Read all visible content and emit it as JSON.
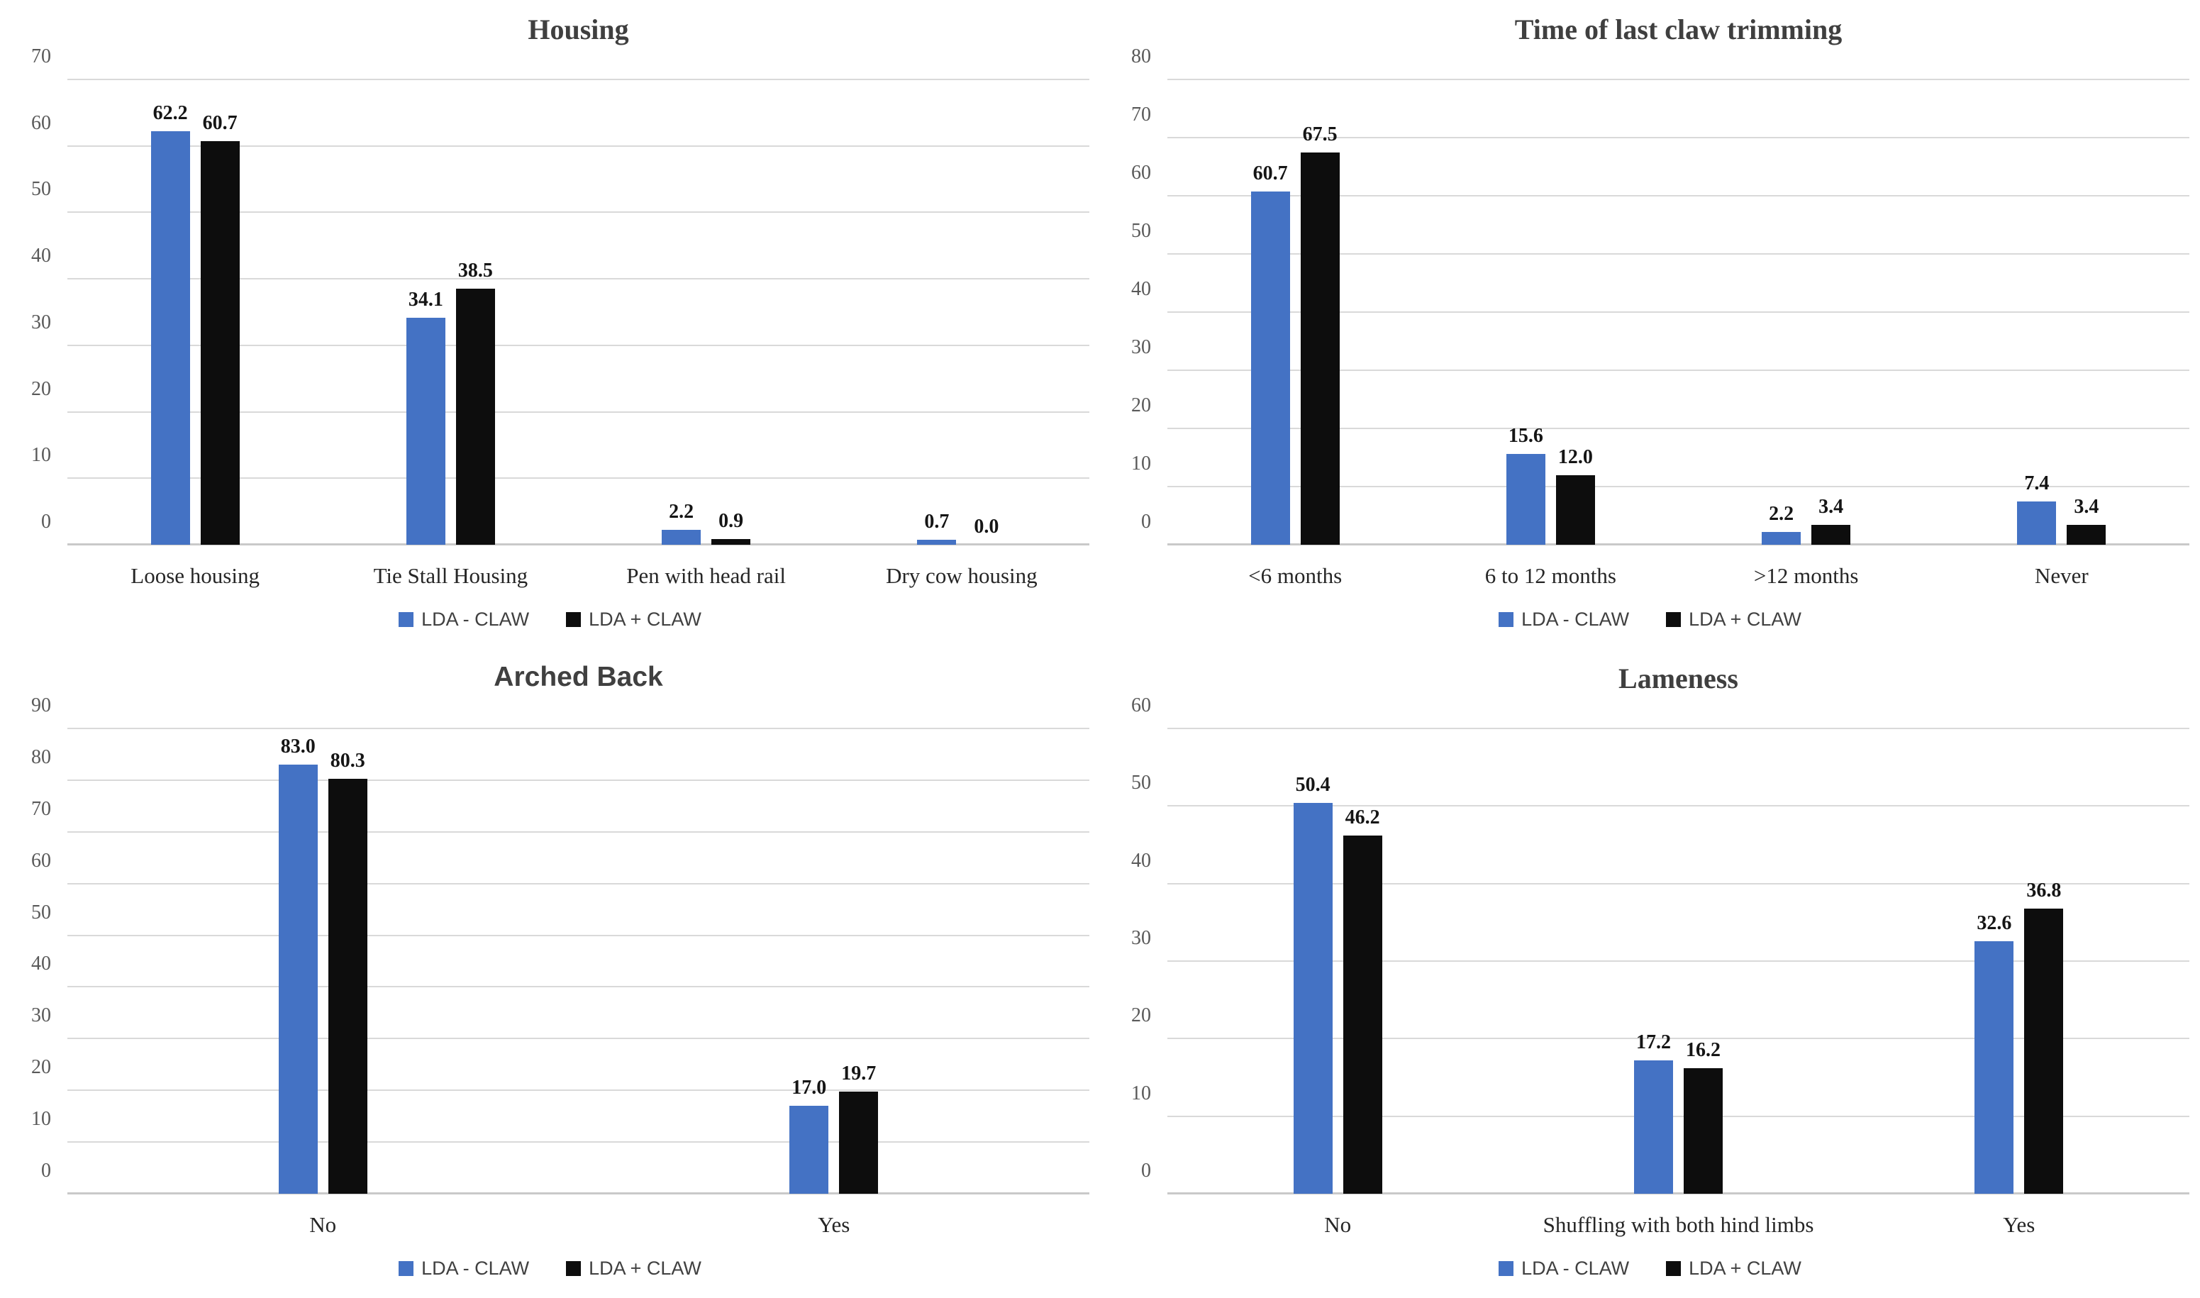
{
  "colors": {
    "series_blue": "#4472C4",
    "series_black": "#0D0D0D",
    "gridline": "#D9D9D9",
    "axis_line": "#C9C9C9",
    "tick_text": "#595959",
    "title_text": "#3F3F3F",
    "category_text": "#262626",
    "data_label_text": "#151515",
    "legend_text": "#404040"
  },
  "chart_data": [
    {
      "type": "bar",
      "title": "Housing",
      "title_style": "serif",
      "xlabel": "",
      "ylabel": "",
      "ylim": [
        0,
        70
      ],
      "ytick_step": 10,
      "grid": true,
      "legend_position": "bottom",
      "data_label_format": "one_decimal",
      "categories": [
        "Loose housing",
        "Tie Stall Housing",
        "Pen with head rail",
        "Dry cow housing"
      ],
      "series": [
        {
          "name": "LDA - CLAW",
          "color_key": "series_blue",
          "values": [
            62.2,
            34.1,
            2.2,
            0.7
          ]
        },
        {
          "name": "LDA + CLAW",
          "color_key": "series_black",
          "values": [
            60.7,
            38.5,
            0.9,
            0.0
          ]
        }
      ]
    },
    {
      "type": "bar",
      "title": "Time of last claw trimming",
      "title_style": "serif",
      "xlabel": "",
      "ylabel": "",
      "ylim": [
        0,
        80
      ],
      "ytick_step": 10,
      "grid": true,
      "legend_position": "bottom",
      "data_label_format": "one_decimal",
      "categories": [
        "<6 months",
        "6 to 12 months",
        ">12 months",
        "Never"
      ],
      "series": [
        {
          "name": "LDA - CLAW",
          "color_key": "series_blue",
          "values": [
            60.7,
            15.6,
            2.2,
            7.4
          ]
        },
        {
          "name": "LDA + CLAW",
          "color_key": "series_black",
          "values": [
            67.5,
            12.0,
            3.4,
            3.4
          ]
        }
      ]
    },
    {
      "type": "bar",
      "title": "Arched Back",
      "title_style": "sans",
      "xlabel": "",
      "ylabel": "",
      "ylim": [
        0,
        90
      ],
      "ytick_step": 10,
      "grid": true,
      "legend_position": "bottom",
      "data_label_format": "one_decimal",
      "categories": [
        "No",
        "Yes"
      ],
      "series": [
        {
          "name": "LDA - CLAW",
          "color_key": "series_blue",
          "values": [
            83.0,
            17.0
          ]
        },
        {
          "name": "LDA + CLAW",
          "color_key": "series_black",
          "values": [
            80.3,
            19.7
          ]
        }
      ]
    },
    {
      "type": "bar",
      "title": "Lameness",
      "title_style": "serif",
      "xlabel": "",
      "ylabel": "",
      "ylim": [
        0,
        60
      ],
      "ytick_step": 10,
      "grid": true,
      "legend_position": "bottom",
      "data_label_format": "one_decimal",
      "categories": [
        "No",
        "Shuffling with both hind limbs",
        "Yes"
      ],
      "series": [
        {
          "name": "LDA - CLAW",
          "color_key": "series_blue",
          "values": [
            50.4,
            17.2,
            32.6
          ]
        },
        {
          "name": "LDA + CLAW",
          "color_key": "series_black",
          "values": [
            46.2,
            16.2,
            36.8
          ]
        }
      ]
    }
  ]
}
